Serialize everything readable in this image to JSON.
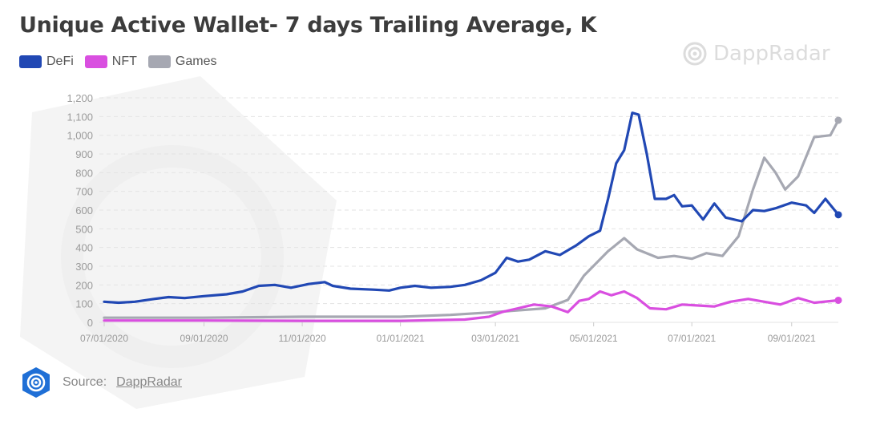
{
  "title": "Unique Active Wallet- 7 days Trailing Average, K",
  "watermark": "DappRadar",
  "source": {
    "label": "Source:",
    "link": "DappRadar"
  },
  "colors": {
    "DeFi": "#2148b4",
    "NFT": "#d94fe0",
    "Games": "#a6a8b2",
    "grid": "#e3e3e3",
    "text": "#9a9a9a"
  },
  "chart_data": {
    "type": "line",
    "title": "Unique Active Wallet- 7 days Trailing Average, K",
    "xlabel": "",
    "ylabel": "",
    "x_tick_labels": [
      "07/01/2020",
      "09/01/2020",
      "11/01/2020",
      "01/01/2021",
      "03/01/2021",
      "05/01/2021",
      "07/01/2021",
      "09/01/2021"
    ],
    "y_tick_labels": [
      "0",
      "100",
      "200",
      "300",
      "400",
      "500",
      "600",
      "700",
      "800",
      "900",
      "1,000",
      "1,100",
      "1,200"
    ],
    "ylim": [
      0,
      1200
    ],
    "xlim": [
      "2020-07-01",
      "2021-09-30"
    ],
    "grid": true,
    "legend_position": "top-left",
    "series": [
      {
        "name": "DeFi",
        "color": "#2148b4",
        "points": [
          [
            "2020-07-01",
            110
          ],
          [
            "2020-07-10",
            105
          ],
          [
            "2020-07-20",
            110
          ],
          [
            "2020-08-01",
            125
          ],
          [
            "2020-08-10",
            135
          ],
          [
            "2020-08-20",
            130
          ],
          [
            "2020-09-01",
            140
          ],
          [
            "2020-09-15",
            150
          ],
          [
            "2020-09-25",
            165
          ],
          [
            "2020-10-05",
            195
          ],
          [
            "2020-10-15",
            200
          ],
          [
            "2020-10-25",
            185
          ],
          [
            "2020-11-05",
            205
          ],
          [
            "2020-11-15",
            215
          ],
          [
            "2020-11-20",
            195
          ],
          [
            "2020-12-01",
            180
          ],
          [
            "2020-12-15",
            175
          ],
          [
            "2020-12-25",
            170
          ],
          [
            "2021-01-01",
            185
          ],
          [
            "2021-01-10",
            195
          ],
          [
            "2021-01-20",
            185
          ],
          [
            "2021-02-01",
            190
          ],
          [
            "2021-02-10",
            200
          ],
          [
            "2021-02-20",
            225
          ],
          [
            "2021-03-01",
            265
          ],
          [
            "2021-03-08",
            345
          ],
          [
            "2021-03-15",
            325
          ],
          [
            "2021-03-22",
            335
          ],
          [
            "2021-04-01",
            380
          ],
          [
            "2021-04-10",
            360
          ],
          [
            "2021-04-20",
            410
          ],
          [
            "2021-04-28",
            460
          ],
          [
            "2021-05-05",
            490
          ],
          [
            "2021-05-10",
            660
          ],
          [
            "2021-05-15",
            850
          ],
          [
            "2021-05-20",
            920
          ],
          [
            "2021-05-25",
            1120
          ],
          [
            "2021-05-29",
            1110
          ],
          [
            "2021-06-03",
            900
          ],
          [
            "2021-06-08",
            660
          ],
          [
            "2021-06-15",
            660
          ],
          [
            "2021-06-20",
            680
          ],
          [
            "2021-06-25",
            620
          ],
          [
            "2021-07-01",
            625
          ],
          [
            "2021-07-08",
            550
          ],
          [
            "2021-07-15",
            635
          ],
          [
            "2021-07-22",
            560
          ],
          [
            "2021-08-01",
            540
          ],
          [
            "2021-08-08",
            600
          ],
          [
            "2021-08-15",
            595
          ],
          [
            "2021-08-22",
            610
          ],
          [
            "2021-09-01",
            640
          ],
          [
            "2021-09-10",
            625
          ],
          [
            "2021-09-15",
            585
          ],
          [
            "2021-09-22",
            660
          ],
          [
            "2021-09-30",
            575
          ]
        ]
      },
      {
        "name": "NFT",
        "color": "#d94fe0",
        "points": [
          [
            "2020-07-01",
            10
          ],
          [
            "2020-09-01",
            10
          ],
          [
            "2020-11-01",
            8
          ],
          [
            "2021-01-01",
            8
          ],
          [
            "2021-02-10",
            15
          ],
          [
            "2021-02-25",
            30
          ],
          [
            "2021-03-05",
            55
          ],
          [
            "2021-03-15",
            75
          ],
          [
            "2021-03-25",
            95
          ],
          [
            "2021-04-05",
            85
          ],
          [
            "2021-04-15",
            55
          ],
          [
            "2021-04-22",
            115
          ],
          [
            "2021-04-28",
            125
          ],
          [
            "2021-05-05",
            165
          ],
          [
            "2021-05-12",
            145
          ],
          [
            "2021-05-20",
            165
          ],
          [
            "2021-05-28",
            130
          ],
          [
            "2021-06-05",
            75
          ],
          [
            "2021-06-15",
            70
          ],
          [
            "2021-06-25",
            95
          ],
          [
            "2021-07-05",
            90
          ],
          [
            "2021-07-15",
            85
          ],
          [
            "2021-07-25",
            110
          ],
          [
            "2021-08-05",
            125
          ],
          [
            "2021-08-15",
            110
          ],
          [
            "2021-08-25",
            95
          ],
          [
            "2021-09-05",
            130
          ],
          [
            "2021-09-15",
            105
          ],
          [
            "2021-09-30",
            118
          ]
        ]
      },
      {
        "name": "Games",
        "color": "#a6a8b2",
        "points": [
          [
            "2020-07-01",
            25
          ],
          [
            "2020-09-01",
            25
          ],
          [
            "2020-11-01",
            30
          ],
          [
            "2021-01-01",
            30
          ],
          [
            "2021-02-01",
            40
          ],
          [
            "2021-03-01",
            55
          ],
          [
            "2021-04-01",
            75
          ],
          [
            "2021-04-15",
            120
          ],
          [
            "2021-04-25",
            250
          ],
          [
            "2021-05-10",
            380
          ],
          [
            "2021-05-20",
            450
          ],
          [
            "2021-05-28",
            390
          ],
          [
            "2021-06-10",
            345
          ],
          [
            "2021-06-20",
            355
          ],
          [
            "2021-07-01",
            340
          ],
          [
            "2021-07-10",
            370
          ],
          [
            "2021-07-20",
            355
          ],
          [
            "2021-07-30",
            460
          ],
          [
            "2021-08-08",
            710
          ],
          [
            "2021-08-15",
            880
          ],
          [
            "2021-08-22",
            800
          ],
          [
            "2021-08-28",
            710
          ],
          [
            "2021-09-05",
            780
          ],
          [
            "2021-09-15",
            990
          ],
          [
            "2021-09-25",
            1000
          ],
          [
            "2021-09-30",
            1080
          ]
        ]
      }
    ]
  }
}
